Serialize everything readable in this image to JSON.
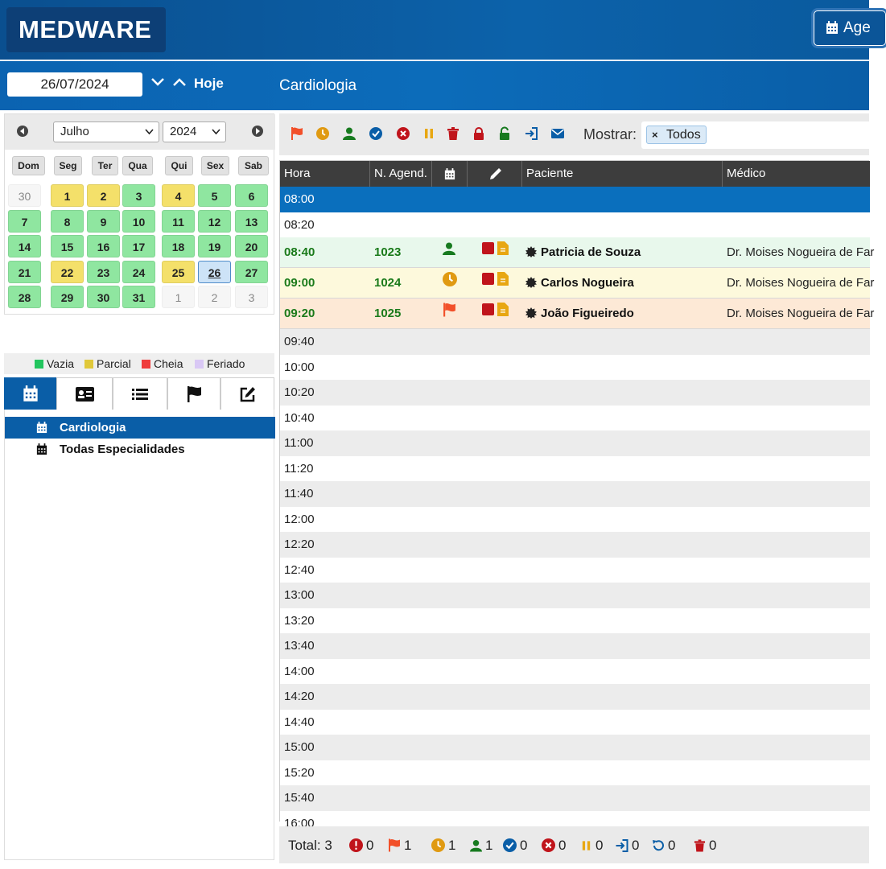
{
  "app": {
    "logo": "MEDWARE",
    "top_button": "Age"
  },
  "subbar": {
    "date": "26/07/2024",
    "today": "Hoje",
    "specialty_title": "Cardiologia"
  },
  "calendar": {
    "month": "Julho",
    "year": "2024",
    "weekdays": [
      "Dom",
      "Seg",
      "Ter",
      "Qua",
      "Qui",
      "Sex",
      "Sab"
    ],
    "weeks": [
      [
        {
          "d": "30",
          "s": "out"
        },
        {
          "d": "1",
          "s": "partial"
        },
        {
          "d": "2",
          "s": "partial"
        },
        {
          "d": "3",
          "s": "empty"
        },
        {
          "d": "4",
          "s": "partial"
        },
        {
          "d": "5",
          "s": "empty"
        },
        {
          "d": "6",
          "s": "empty"
        }
      ],
      [
        {
          "d": "7",
          "s": "empty"
        },
        {
          "d": "8",
          "s": "empty"
        },
        {
          "d": "9",
          "s": "empty"
        },
        {
          "d": "10",
          "s": "empty"
        },
        {
          "d": "11",
          "s": "empty"
        },
        {
          "d": "12",
          "s": "empty"
        },
        {
          "d": "13",
          "s": "empty"
        }
      ],
      [
        {
          "d": "14",
          "s": "empty"
        },
        {
          "d": "15",
          "s": "empty"
        },
        {
          "d": "16",
          "s": "empty"
        },
        {
          "d": "17",
          "s": "empty"
        },
        {
          "d": "18",
          "s": "empty"
        },
        {
          "d": "19",
          "s": "empty"
        },
        {
          "d": "20",
          "s": "empty"
        }
      ],
      [
        {
          "d": "21",
          "s": "empty"
        },
        {
          "d": "22",
          "s": "partial"
        },
        {
          "d": "23",
          "s": "empty"
        },
        {
          "d": "24",
          "s": "empty"
        },
        {
          "d": "25",
          "s": "partial"
        },
        {
          "d": "26",
          "s": "selected"
        },
        {
          "d": "27",
          "s": "empty"
        }
      ],
      [
        {
          "d": "28",
          "s": "empty"
        },
        {
          "d": "29",
          "s": "empty"
        },
        {
          "d": "30",
          "s": "empty"
        },
        {
          "d": "31",
          "s": "empty"
        },
        {
          "d": "1",
          "s": "out"
        },
        {
          "d": "2",
          "s": "out"
        },
        {
          "d": "3",
          "s": "out"
        }
      ]
    ]
  },
  "legend": [
    {
      "label": "Vazia",
      "color": "#22c55e"
    },
    {
      "label": "Parcial",
      "color": "#e0c83a"
    },
    {
      "label": "Cheia",
      "color": "#ef3b3b"
    },
    {
      "label": "Feriado",
      "color": "#d9c8f5"
    }
  ],
  "side_tabs": [
    "calendar-icon",
    "id-card-icon",
    "list-icon",
    "flag-icon",
    "edit-icon"
  ],
  "specialties": [
    "Cardiologia",
    "Todas Especialidades"
  ],
  "toolbar": {
    "show_label": "Mostrar:",
    "filter_tag": "Todos",
    "filter_remove": "×"
  },
  "grid": {
    "headers": {
      "hour": "Hora",
      "number": "N. Agend.",
      "patient": "Paciente",
      "doctor": "Médico"
    },
    "slots": [
      "08:00",
      "08:20",
      "08:40",
      "09:00",
      "09:20",
      "09:40",
      "10:00",
      "10:20",
      "10:40",
      "11:00",
      "11:20",
      "11:40",
      "12:00",
      "12:20",
      "12:40",
      "13:00",
      "13:20",
      "13:40",
      "14:00",
      "14:20",
      "14:40",
      "15:00",
      "15:20",
      "15:40",
      "16:00"
    ],
    "appointments": [
      {
        "time": "08:40",
        "number": "1023",
        "patient": "Patricia de Souza",
        "doctor": "Dr. Moises Nogueira de Far",
        "status": "present",
        "bg": "#e8f8ec"
      },
      {
        "time": "09:00",
        "number": "1024",
        "patient": "Carlos Nogueira",
        "doctor": "Dr. Moises Nogueira de Far",
        "status": "waiting",
        "bg": "#fdf9dc"
      },
      {
        "time": "09:20",
        "number": "1025",
        "patient": "João Figueiredo",
        "doctor": "Dr. Moises Nogueira de Far",
        "status": "flag",
        "bg": "#fde9d6"
      }
    ]
  },
  "footer": {
    "total_label": "Total: 3",
    "counts": [
      "0",
      "1",
      "1",
      "1",
      "0",
      "0",
      "0",
      "0",
      "0",
      "0"
    ]
  },
  "colors": {
    "red": "#c0141b",
    "orange": "#f2502a",
    "amber": "#e09a12",
    "green": "#177a1f",
    "blue": "#0a5ea7",
    "pause": "#e8a712"
  }
}
